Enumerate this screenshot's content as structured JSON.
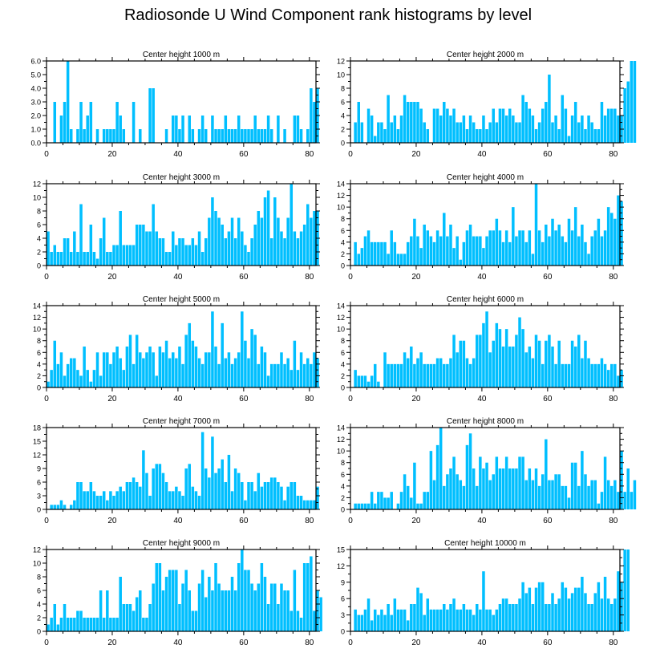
{
  "title": "Radiosonde U Wind Component rank histograms by level",
  "bar_color": "#00BFFF",
  "chart_data": [
    {
      "type": "bar",
      "title": "Center height 1000 m",
      "xlabel": "",
      "ylabel": "",
      "xlim": [
        0,
        82
      ],
      "xticks": [
        0,
        20,
        40,
        60,
        80
      ],
      "ylim": [
        0,
        6
      ],
      "yticks": [
        0,
        1,
        2,
        3,
        4,
        5,
        6
      ],
      "ytick_labels": [
        "0.0",
        "1.0",
        "2.0",
        "3.0",
        "4.0",
        "5.0",
        "6.0"
      ],
      "values": [
        0,
        0,
        3,
        0,
        2,
        3,
        6,
        1,
        0,
        1,
        3,
        1,
        2,
        3,
        0,
        1,
        0,
        1,
        1,
        1,
        1,
        3,
        2,
        1,
        0,
        0,
        3,
        0,
        1,
        0,
        0,
        4,
        4,
        0,
        0,
        0,
        1,
        0,
        2,
        2,
        1,
        2,
        0,
        2,
        1,
        0,
        1,
        2,
        1,
        0,
        2,
        1,
        1,
        1,
        2,
        1,
        1,
        1,
        2,
        1,
        1,
        1,
        1,
        2,
        1,
        1,
        1,
        2,
        1,
        0,
        2,
        0,
        1,
        0,
        0,
        2,
        2,
        1,
        0,
        1,
        4,
        3,
        4
      ]
    },
    {
      "type": "bar",
      "title": "Center height 2000 m",
      "xlabel": "",
      "ylabel": "",
      "xlim": [
        0,
        82
      ],
      "xticks": [
        0,
        20,
        40,
        60,
        80
      ],
      "ylim": [
        0,
        12
      ],
      "yticks": [
        0,
        2,
        4,
        6,
        8,
        10,
        12
      ],
      "ytick_labels": [
        "0",
        "2",
        "4",
        "6",
        "8",
        "10",
        "12"
      ],
      "values": [
        0,
        3,
        6,
        3,
        0,
        5,
        4,
        1,
        3,
        3,
        2,
        7,
        3,
        4,
        2,
        4,
        7,
        6,
        6,
        6,
        6,
        5,
        3,
        2,
        0,
        5,
        5,
        4,
        6,
        5,
        4,
        5,
        3,
        3,
        4,
        2,
        4,
        3,
        2,
        2,
        4,
        2,
        3,
        5,
        3,
        5,
        5,
        4,
        5,
        4,
        3,
        3,
        7,
        6,
        5,
        4,
        2,
        3,
        5,
        6,
        10,
        3,
        4,
        2,
        7,
        5,
        1,
        4,
        6,
        3,
        4,
        2,
        4,
        3,
        2,
        2,
        6,
        4,
        5,
        5,
        5,
        4,
        4,
        8,
        9,
        12,
        12
      ]
    },
    {
      "type": "bar",
      "title": "Center height 3000 m",
      "xlabel": "",
      "ylabel": "",
      "xlim": [
        0,
        82
      ],
      "xticks": [
        0,
        20,
        40,
        60,
        80
      ],
      "ylim": [
        0,
        12
      ],
      "yticks": [
        0,
        2,
        4,
        6,
        8,
        10,
        12
      ],
      "ytick_labels": [
        "0",
        "2",
        "4",
        "6",
        "8",
        "10",
        "12"
      ],
      "values": [
        5,
        2,
        3,
        2,
        2,
        4,
        4,
        2,
        5,
        2,
        9,
        2,
        2,
        6,
        2,
        1,
        4,
        7,
        2,
        2,
        3,
        3,
        8,
        3,
        3,
        3,
        3,
        6,
        6,
        6,
        5,
        5,
        9,
        5,
        4,
        4,
        2,
        2,
        5,
        3,
        4,
        4,
        3,
        3,
        4,
        3,
        5,
        2,
        4,
        7,
        10,
        8,
        7,
        6,
        4,
        5,
        7,
        4,
        7,
        5,
        3,
        2,
        4,
        6,
        8,
        7,
        10,
        11,
        4,
        10,
        7,
        5,
        4,
        7,
        12,
        5,
        4,
        5,
        6,
        9,
        7,
        8,
        8
      ]
    },
    {
      "type": "bar",
      "title": "Center height 4000 m",
      "xlabel": "",
      "ylabel": "",
      "xlim": [
        0,
        82
      ],
      "xticks": [
        0,
        20,
        40,
        60,
        80
      ],
      "ylim": [
        0,
        14
      ],
      "yticks": [
        0,
        2,
        4,
        6,
        8,
        10,
        12,
        14
      ],
      "ytick_labels": [
        "0",
        "2",
        "4",
        "6",
        "8",
        "10",
        "12",
        "14"
      ],
      "values": [
        0,
        4,
        2,
        3,
        5,
        6,
        4,
        4,
        4,
        4,
        4,
        2,
        6,
        4,
        2,
        2,
        2,
        4,
        5,
        8,
        5,
        3,
        7,
        6,
        5,
        4,
        6,
        5,
        9,
        5,
        7,
        3,
        5,
        1,
        4,
        6,
        7,
        5,
        5,
        5,
        3,
        5,
        6,
        6,
        8,
        6,
        4,
        6,
        4,
        10,
        5,
        6,
        6,
        4,
        6,
        2,
        14,
        6,
        4,
        7,
        5,
        8,
        6,
        7,
        5,
        4,
        8,
        6,
        10,
        5,
        7,
        4,
        2,
        5,
        6,
        8,
        5,
        6,
        10,
        9,
        8,
        12,
        11
      ]
    },
    {
      "type": "bar",
      "title": "Center height 5000 m",
      "xlabel": "",
      "ylabel": "",
      "xlim": [
        0,
        82
      ],
      "xticks": [
        0,
        20,
        40,
        60,
        80
      ],
      "ylim": [
        0,
        14
      ],
      "yticks": [
        0,
        2,
        4,
        6,
        8,
        10,
        12,
        14
      ],
      "ytick_labels": [
        "0",
        "2",
        "4",
        "6",
        "8",
        "10",
        "12",
        "14"
      ],
      "values": [
        1,
        3,
        8,
        4,
        6,
        2,
        4,
        5,
        5,
        3,
        2,
        7,
        3,
        1,
        3,
        6,
        2,
        6,
        6,
        4,
        6,
        7,
        5,
        3,
        7,
        9,
        4,
        9,
        6,
        5,
        6,
        7,
        6,
        2,
        7,
        6,
        8,
        5,
        6,
        5,
        7,
        4,
        9,
        11,
        8,
        7,
        5,
        4,
        6,
        6,
        13,
        7,
        4,
        11,
        5,
        6,
        4,
        5,
        6,
        13,
        8,
        5,
        10,
        9,
        4,
        7,
        6,
        2,
        4,
        4,
        4,
        6,
        4,
        5,
        3,
        8,
        3,
        6,
        4,
        5,
        4,
        6,
        5
      ]
    },
    {
      "type": "bar",
      "title": "Center height 6000 m",
      "xlabel": "",
      "ylabel": "",
      "xlim": [
        0,
        82
      ],
      "xticks": [
        0,
        20,
        40,
        60,
        80
      ],
      "ylim": [
        0,
        14
      ],
      "yticks": [
        0,
        2,
        4,
        6,
        8,
        10,
        12,
        14
      ],
      "ytick_labels": [
        "0",
        "2",
        "4",
        "6",
        "8",
        "10",
        "12",
        "14"
      ],
      "values": [
        0,
        3,
        2,
        2,
        2,
        1,
        2,
        4,
        1,
        0,
        6,
        4,
        4,
        4,
        4,
        4,
        6,
        5,
        7,
        4,
        5,
        6,
        4,
        4,
        4,
        4,
        5,
        5,
        4,
        4,
        5,
        9,
        6,
        8,
        8,
        5,
        4,
        5,
        9,
        9,
        11,
        13,
        6,
        8,
        11,
        10,
        7,
        10,
        7,
        7,
        9,
        12,
        10,
        6,
        7,
        5,
        9,
        8,
        4,
        8,
        9,
        7,
        4,
        8,
        4,
        4,
        4,
        8,
        7,
        9,
        5,
        8,
        5,
        4,
        4,
        4,
        5,
        4,
        3,
        4,
        4,
        2,
        3
      ]
    },
    {
      "type": "bar",
      "title": "Center height 7000 m",
      "xlabel": "",
      "ylabel": "",
      "xlim": [
        0,
        82
      ],
      "xticks": [
        0,
        20,
        40,
        60,
        80
      ],
      "ylim": [
        0,
        18
      ],
      "yticks": [
        0,
        3,
        6,
        9,
        12,
        15,
        18
      ],
      "ytick_labels": [
        "0",
        "3",
        "6",
        "9",
        "12",
        "15",
        "18"
      ],
      "values": [
        0,
        1,
        1,
        1,
        2,
        1,
        0,
        1,
        2,
        6,
        6,
        4,
        4,
        6,
        4,
        3,
        3,
        4,
        2,
        4,
        3,
        4,
        5,
        4,
        6,
        6,
        7,
        6,
        5,
        13,
        8,
        3,
        9,
        10,
        10,
        8,
        6,
        4,
        4,
        5,
        4,
        3,
        9,
        10,
        5,
        4,
        3,
        17,
        9,
        7,
        16,
        8,
        9,
        11,
        6,
        12,
        4,
        9,
        8,
        6,
        2,
        6,
        6,
        4,
        8,
        5,
        6,
        6,
        7,
        7,
        6,
        5,
        2,
        5,
        6,
        6,
        3,
        3,
        2,
        2,
        2,
        2,
        5
      ]
    },
    {
      "type": "bar",
      "title": "Center height 8000 m",
      "xlabel": "",
      "ylabel": "",
      "xlim": [
        0,
        82
      ],
      "xticks": [
        0,
        20,
        40,
        60,
        80
      ],
      "ylim": [
        0,
        14
      ],
      "yticks": [
        0,
        2,
        4,
        6,
        8,
        10,
        12,
        14
      ],
      "ytick_labels": [
        "0",
        "2",
        "4",
        "6",
        "8",
        "10",
        "12",
        "14"
      ],
      "values": [
        0,
        1,
        1,
        1,
        1,
        1,
        3,
        1,
        3,
        3,
        2,
        2,
        3,
        0,
        1,
        3,
        6,
        4,
        2,
        8,
        1,
        1,
        3,
        3,
        10,
        5,
        11,
        14,
        4,
        6,
        7,
        9,
        6,
        5,
        4,
        11,
        13,
        7,
        4,
        9,
        7,
        8,
        5,
        6,
        9,
        7,
        7,
        9,
        7,
        7,
        7,
        9,
        9,
        5,
        7,
        5,
        7,
        4,
        6,
        12,
        5,
        5,
        6,
        6,
        4,
        4,
        2,
        8,
        8,
        4,
        10,
        6,
        4,
        5,
        5,
        1,
        3,
        9,
        5,
        4,
        5,
        3,
        10,
        3,
        7,
        3,
        5
      ]
    },
    {
      "type": "bar",
      "title": "Center height 9000 m",
      "xlabel": "",
      "ylabel": "",
      "xlim": [
        0,
        82
      ],
      "xticks": [
        0,
        20,
        40,
        60,
        80
      ],
      "ylim": [
        0,
        12
      ],
      "yticks": [
        0,
        2,
        4,
        6,
        8,
        10,
        12
      ],
      "ytick_labels": [
        "0",
        "2",
        "4",
        "6",
        "8",
        "10",
        "12"
      ],
      "values": [
        1,
        2,
        4,
        1,
        2,
        4,
        2,
        2,
        2,
        3,
        3,
        2,
        2,
        2,
        2,
        2,
        6,
        2,
        6,
        2,
        2,
        2,
        8,
        4,
        4,
        4,
        3,
        5,
        6,
        2,
        2,
        4,
        7,
        10,
        10,
        6,
        8,
        9,
        9,
        9,
        4,
        7,
        9,
        6,
        3,
        3,
        7,
        9,
        5,
        8,
        6,
        10,
        7,
        6,
        6,
        6,
        8,
        6,
        10,
        12,
        9,
        9,
        7,
        6,
        7,
        10,
        8,
        4,
        7,
        7,
        4,
        7,
        6,
        6,
        3,
        9,
        3,
        2,
        10,
        10,
        11,
        3,
        6,
        5
      ]
    },
    {
      "type": "bar",
      "title": "Center height 10000 m",
      "xlabel": "",
      "ylabel": "",
      "xlim": [
        0,
        82
      ],
      "xticks": [
        0,
        20,
        40,
        60,
        80
      ],
      "ylim": [
        0,
        15
      ],
      "yticks": [
        0,
        3,
        6,
        9,
        12,
        15
      ],
      "ytick_labels": [
        "0",
        "3",
        "6",
        "9",
        "12",
        "15"
      ],
      "values": [
        0,
        4,
        3,
        3,
        4,
        6,
        2,
        4,
        3,
        4,
        3,
        5,
        3,
        6,
        4,
        4,
        4,
        2,
        5,
        5,
        8,
        7,
        3,
        6,
        4,
        4,
        4,
        4,
        5,
        4,
        5,
        6,
        4,
        4,
        5,
        4,
        4,
        3,
        5,
        4,
        11,
        4,
        4,
        3,
        4,
        5,
        6,
        6,
        5,
        5,
        5,
        6,
        9,
        7,
        8,
        5,
        8,
        9,
        9,
        5,
        5,
        7,
        5,
        6,
        9,
        8,
        6,
        7,
        8,
        8,
        10,
        7,
        5,
        5,
        7,
        9,
        6,
        10,
        6,
        5,
        6,
        11,
        9,
        15,
        15
      ]
    }
  ]
}
